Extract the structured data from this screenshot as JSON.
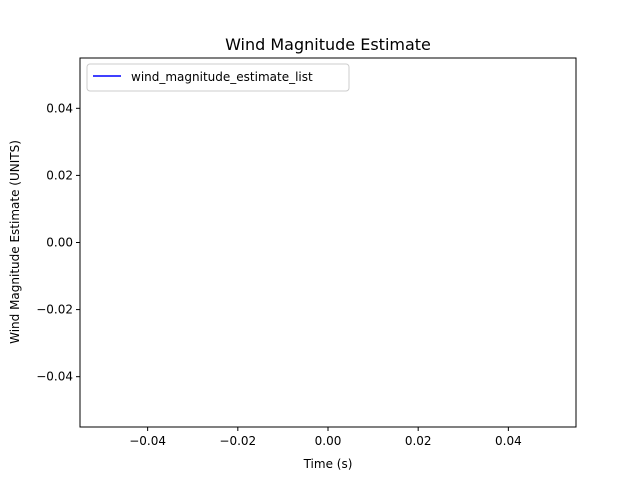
{
  "chart_data": {
    "type": "line",
    "title": "Wind Magnitude Estimate",
    "xlabel": "Time (s)",
    "ylabel": "Wind Magnitude Estimate (UNITS)",
    "xlim": [
      -0.055,
      0.055
    ],
    "ylim": [
      -0.055,
      0.055
    ],
    "xticks": [
      -0.04,
      -0.02,
      0.0,
      0.02,
      0.04
    ],
    "yticks": [
      -0.04,
      -0.02,
      0.0,
      0.02,
      0.04
    ],
    "xtick_labels": [
      "−0.04",
      "−0.02",
      "0.00",
      "0.02",
      "0.04"
    ],
    "ytick_labels": [
      "−0.04",
      "−0.02",
      "0.00",
      "0.02",
      "0.04"
    ],
    "grid": false,
    "legend_position": "top-left",
    "series": [
      {
        "name": "wind_magnitude_estimate_list",
        "color": "#0000ff",
        "x": [],
        "y": []
      }
    ]
  }
}
